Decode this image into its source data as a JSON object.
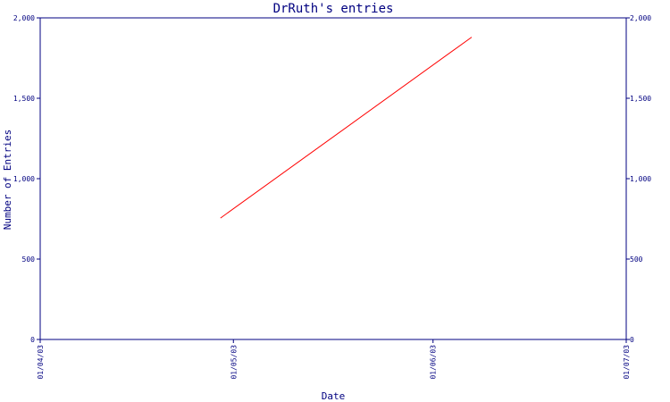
{
  "chart_data": {
    "type": "line",
    "title": "DrRuth's entries",
    "xlabel": "Date",
    "ylabel": "Number of Entries",
    "x_ticks": [
      "01/04/03",
      "01/05/03",
      "01/06/03",
      "01/07/03"
    ],
    "y_ticks": [
      "0",
      "500",
      "1,000",
      "1,500",
      "2,000"
    ],
    "y_tick_values": [
      0,
      500,
      1000,
      1500,
      2000
    ],
    "xlim": [
      "2003-04-01",
      "2003-07-01"
    ],
    "ylim": [
      0,
      2000
    ],
    "grid": false,
    "series": [
      {
        "x": [
          "2003-04-29",
          "2003-06-07"
        ],
        "values": [
          755,
          1880
        ]
      }
    ],
    "colors": {
      "axis": "#000080",
      "line": "#ff0000"
    }
  }
}
